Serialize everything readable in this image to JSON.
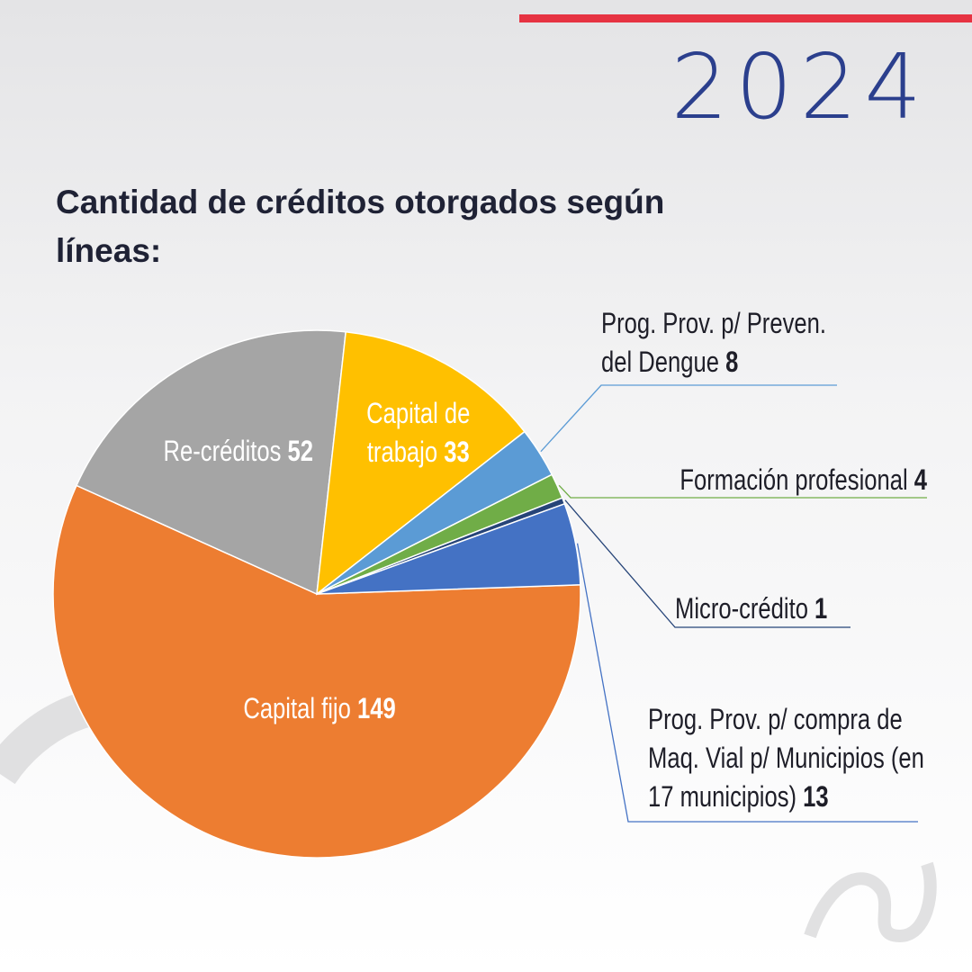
{
  "year": "2024",
  "chart_data": {
    "type": "pie",
    "title": "Cantidad de créditos otorgados según líneas:",
    "categories": [
      "Capital fijo",
      "Re-créditos",
      "Capital de trabajo",
      "Prog. Prov. p/ Preven. del Dengue",
      "Formación profesional",
      "Micro-crédito",
      "Prog. Prov. p/ compra de Maq. Vial p/ Municipios (en 17 municipios)"
    ],
    "values": [
      149,
      52,
      33,
      8,
      4,
      1,
      13
    ],
    "colors": [
      "#ed7d31",
      "#a5a5a5",
      "#ffc000",
      "#5b9bd5",
      "#70ad47",
      "#264478",
      "#4472c4"
    ]
  }
}
